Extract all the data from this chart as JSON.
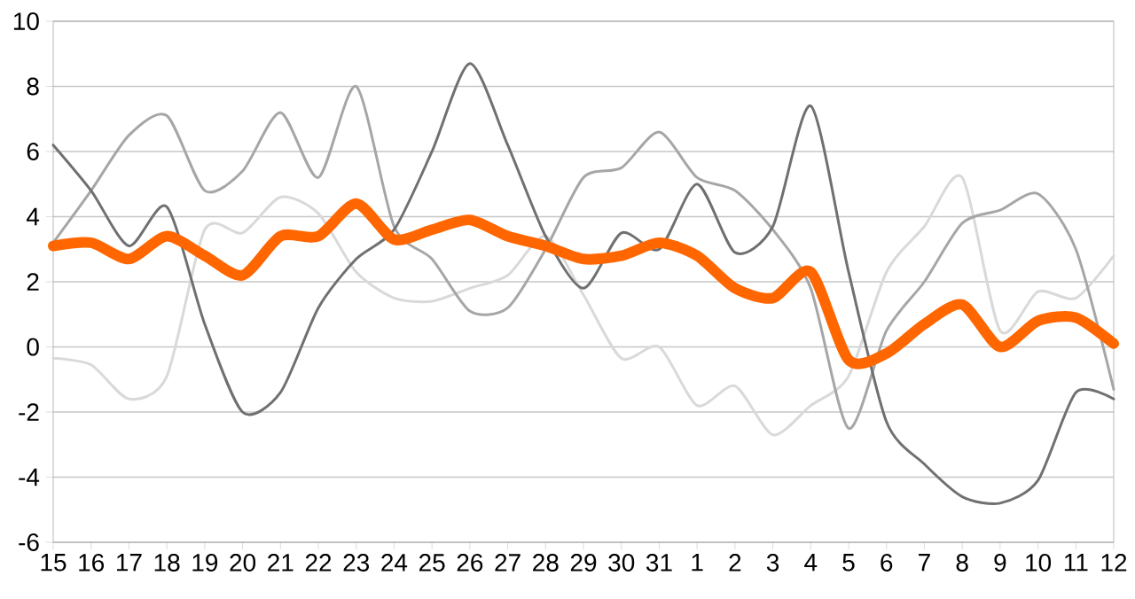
{
  "chart_data": {
    "type": "line",
    "categories": [
      "15",
      "16",
      "17",
      "18",
      "19",
      "20",
      "21",
      "22",
      "23",
      "24",
      "25",
      "26",
      "27",
      "28",
      "29",
      "30",
      "31",
      "1",
      "2",
      "3",
      "4",
      "5",
      "6",
      "7",
      "8",
      "9",
      "10",
      "11",
      "12"
    ],
    "series": [
      {
        "color": "#d9d9d9",
        "values": [
          -0.35,
          -0.55,
          -1.6,
          -0.9,
          3.6,
          3.5,
          4.6,
          4.1,
          2.3,
          1.5,
          1.4,
          1.8,
          2.2,
          3.4,
          1.6,
          -0.35,
          0,
          -1.8,
          -1.2,
          -2.7,
          -1.8,
          -0.9,
          2.3,
          3.7,
          5.2,
          0.5,
          1.7,
          1.5,
          2.8
        ]
      },
      {
        "color": "#a6a6a6",
        "values": [
          3.2,
          4.8,
          6.5,
          7.1,
          4.8,
          5.4,
          7.2,
          5.2,
          8.0,
          3.7,
          2.7,
          1.1,
          1.2,
          3.0,
          5.2,
          5.5,
          6.6,
          5.2,
          4.8,
          3.6,
          1.8,
          -2.5,
          0.5,
          2.0,
          3.8,
          4.2,
          4.7,
          3.0,
          -1.3
        ]
      },
      {
        "color": "#707070",
        "values": [
          6.2,
          4.8,
          3.1,
          4.3,
          0.7,
          -2.0,
          -1.4,
          1.2,
          2.7,
          3.6,
          6.0,
          8.7,
          6.2,
          3.4,
          1.8,
          3.5,
          3.0,
          5.0,
          2.9,
          3.7,
          7.4,
          2.3,
          -2.3,
          -3.6,
          -4.6,
          -4.8,
          -4.1,
          -1.4,
          -1.6
        ]
      },
      {
        "color": "#ff6600",
        "values": [
          3.1,
          3.2,
          2.7,
          3.4,
          2.8,
          2.2,
          3.4,
          3.4,
          4.4,
          3.3,
          3.6,
          3.9,
          3.4,
          3.1,
          2.7,
          2.8,
          3.2,
          2.8,
          1.8,
          1.5,
          2.3,
          -0.4,
          -0.2,
          0.7,
          1.3,
          0,
          0.8,
          0.9,
          0.1
        ]
      }
    ],
    "ylim": [
      -6,
      10
    ],
    "yticks": [
      -6,
      -4,
      -2,
      0,
      2,
      4,
      6,
      8,
      10
    ],
    "grid": "y",
    "marker": "none",
    "line_style": "solid"
  }
}
